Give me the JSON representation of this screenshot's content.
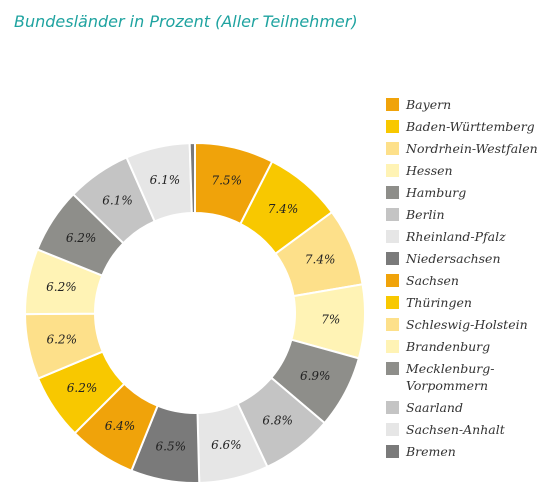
{
  "chart_data": {
    "type": "pie",
    "title": "Bundesländer in Prozent (Aller Teilnehmer)",
    "donut": true,
    "legend_position": "right",
    "slices": [
      {
        "label": "Bayern",
        "value": 7.5,
        "display": "7.5%",
        "color": "#f0a30a"
      },
      {
        "label": "Baden-Württemberg",
        "value": 7.4,
        "display": "7.4%",
        "color": "#f8c800"
      },
      {
        "label": "Nordrhein-Westfalen",
        "value": 7.4,
        "display": "7.4%",
        "color": "#fde08a"
      },
      {
        "label": "Hessen",
        "value": 7.0,
        "display": "7%",
        "color": "#fff3b5"
      },
      {
        "label": "Hamburg",
        "value": 6.9,
        "display": "6.9%",
        "color": "#8e8e8a"
      },
      {
        "label": "Berlin",
        "value": 6.8,
        "display": "6.8%",
        "color": "#c4c4c4"
      },
      {
        "label": "Rheinland-Pfalz",
        "value": 6.6,
        "display": "6.6%",
        "color": "#e6e6e6"
      },
      {
        "label": "Niedersachsen",
        "value": 6.5,
        "display": "6.5%",
        "color": "#7a7a7a"
      },
      {
        "label": "Sachsen",
        "value": 6.4,
        "display": "6.4%",
        "color": "#f0a30a"
      },
      {
        "label": "Thüringen",
        "value": 6.2,
        "display": "6.2%",
        "color": "#f8c800"
      },
      {
        "label": "Schleswig-Holstein",
        "value": 6.2,
        "display": "6.2%",
        "color": "#fde08a"
      },
      {
        "label": "Brandenburg",
        "value": 6.2,
        "display": "6.2%",
        "color": "#fff3b5"
      },
      {
        "label": "Mecklenburg-Vorpommern",
        "label_lines": [
          "Mecklenburg-",
          "Vorpommern"
        ],
        "value": 6.2,
        "display": "6.2%",
        "color": "#8e8e8a"
      },
      {
        "label": "Saarland",
        "value": 6.1,
        "display": "6.1%",
        "color": "#c4c4c4"
      },
      {
        "label": "Sachsen-Anhalt",
        "value": 6.1,
        "display": "6.1%",
        "color": "#e6e6e6"
      },
      {
        "label": "Bremen",
        "value": 0.5,
        "display": "",
        "color": "#7a7a7a"
      }
    ]
  }
}
